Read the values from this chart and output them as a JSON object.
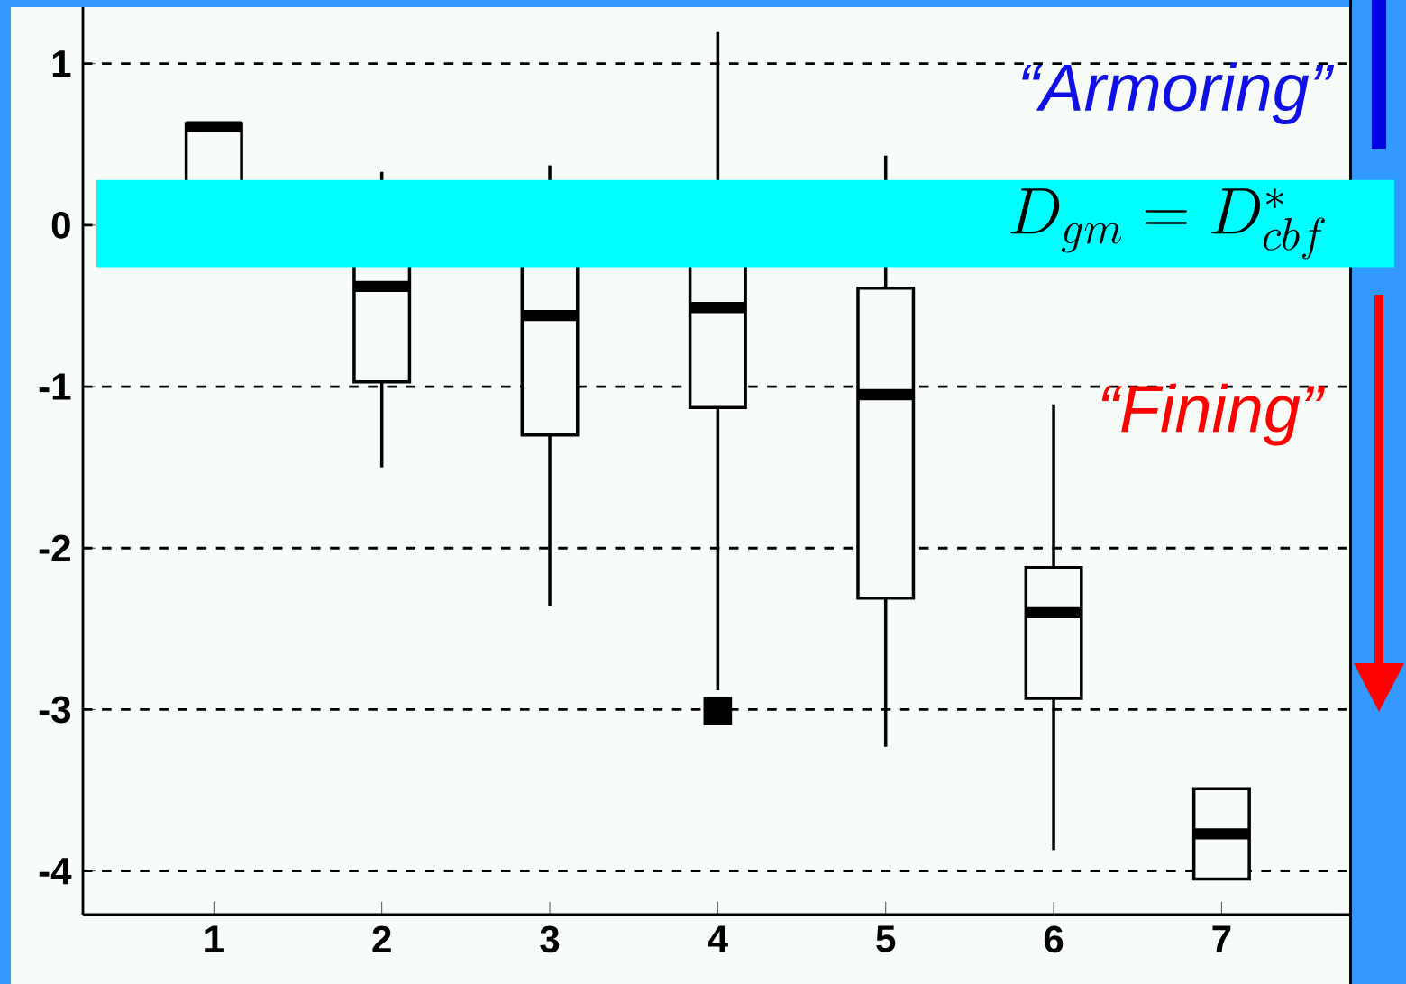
{
  "chart_data": {
    "type": "box",
    "categories": [
      "1",
      "2",
      "3",
      "4",
      "5",
      "6",
      "7"
    ],
    "boxes": [
      {
        "low": 0.1,
        "q1": 0.2,
        "median": 0.61,
        "q3": 0.63,
        "high": 0.63
      },
      {
        "low": -1.5,
        "q1": -0.97,
        "median": -0.38,
        "q3": 0.1,
        "high": 0.33
      },
      {
        "low": -2.36,
        "q1": -1.3,
        "median": -0.56,
        "q3": 0.15,
        "high": 0.37
      },
      {
        "low": -2.88,
        "q1": -1.13,
        "median": -0.51,
        "q3": 0.2,
        "high": 1.2,
        "outliers": [
          -3.01
        ]
      },
      {
        "low": -3.23,
        "q1": -2.31,
        "median": -1.05,
        "q3": -0.39,
        "high": 0.43
      },
      {
        "low": -3.87,
        "q1": -2.93,
        "median": -2.4,
        "q3": -2.12,
        "high": -1.11
      },
      {
        "low": -4.05,
        "q1": -4.05,
        "median": -3.77,
        "q3": -3.49,
        "high": -3.49
      }
    ],
    "ylim": [
      -4.27,
      1.35
    ],
    "yticks": [
      -4,
      -3,
      -2,
      -1,
      0,
      1
    ],
    "grid": "y",
    "bands": [
      {
        "axis": "y",
        "from": -0.26,
        "to": 0.28,
        "label": "D_{gm}=D^{*}_{cbf}",
        "color": "#00ffff"
      }
    ],
    "annotations": [
      "“Armoring”",
      "“Fining”"
    ]
  }
}
